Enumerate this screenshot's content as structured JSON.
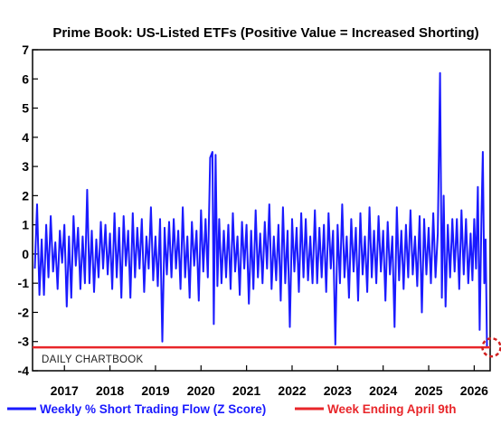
{
  "chart_data": {
    "type": "line",
    "title": "Prime Book: US-Listed ETFs (Positive Value = Increased Shorting)",
    "xlabel": "",
    "ylabel": "",
    "xlim": [
      2016.3,
      2026.35
    ],
    "ylim": [
      -4,
      7
    ],
    "y_ticks": [
      7,
      6,
      5,
      4,
      3,
      2,
      1,
      0,
      -1,
      -2,
      -3,
      -4
    ],
    "x_tick_labels": [
      "2017",
      "2018",
      "2019",
      "2020",
      "2021",
      "2022",
      "2023",
      "2024",
      "2025",
      "2026"
    ],
    "x_tick_values": [
      2017,
      2018,
      2019,
      2020,
      2021,
      2022,
      2023,
      2024,
      2025,
      2026
    ],
    "grid": false,
    "legend_position": "bottom",
    "series": [
      {
        "name": "Weekly % Short Trading Flow (Z Score)",
        "color": "#1a1aff",
        "kind": "line",
        "points": [
          [
            2016.35,
            -0.5
          ],
          [
            2016.4,
            1.7
          ],
          [
            2016.45,
            -1.4
          ],
          [
            2016.5,
            0.5
          ],
          [
            2016.55,
            -1.4
          ],
          [
            2016.6,
            1.0
          ],
          [
            2016.65,
            -0.8
          ],
          [
            2016.7,
            1.3
          ],
          [
            2016.75,
            -0.6
          ],
          [
            2016.8,
            0.4
          ],
          [
            2016.85,
            -1.2
          ],
          [
            2016.9,
            0.8
          ],
          [
            2016.95,
            -0.3
          ],
          [
            2017.0,
            1.0
          ],
          [
            2017.05,
            -1.8
          ],
          [
            2017.1,
            0.6
          ],
          [
            2017.15,
            -1.5
          ],
          [
            2017.2,
            1.3
          ],
          [
            2017.25,
            -0.4
          ],
          [
            2017.3,
            0.9
          ],
          [
            2017.35,
            -1.2
          ],
          [
            2017.4,
            0.6
          ],
          [
            2017.45,
            -1.0
          ],
          [
            2017.5,
            2.2
          ],
          [
            2017.55,
            -1.0
          ],
          [
            2017.6,
            0.8
          ],
          [
            2017.65,
            -1.3
          ],
          [
            2017.7,
            0.5
          ],
          [
            2017.75,
            -0.8
          ],
          [
            2017.8,
            1.1
          ],
          [
            2017.85,
            -0.5
          ],
          [
            2017.9,
            1.0
          ],
          [
            2017.95,
            -0.7
          ],
          [
            2018.0,
            0.7
          ],
          [
            2018.05,
            -1.2
          ],
          [
            2018.1,
            1.4
          ],
          [
            2018.15,
            -0.8
          ],
          [
            2018.2,
            0.9
          ],
          [
            2018.25,
            -1.5
          ],
          [
            2018.3,
            1.3
          ],
          [
            2018.35,
            -0.4
          ],
          [
            2018.4,
            0.8
          ],
          [
            2018.45,
            -1.5
          ],
          [
            2018.5,
            1.4
          ],
          [
            2018.55,
            -0.8
          ],
          [
            2018.6,
            0.9
          ],
          [
            2018.65,
            -0.5
          ],
          [
            2018.7,
            1.2
          ],
          [
            2018.75,
            -1.3
          ],
          [
            2018.8,
            0.6
          ],
          [
            2018.85,
            -0.5
          ],
          [
            2018.9,
            1.6
          ],
          [
            2018.95,
            -0.9
          ],
          [
            2019.0,
            0.6
          ],
          [
            2019.05,
            -1.1
          ],
          [
            2019.1,
            1.2
          ],
          [
            2019.15,
            -3.0
          ],
          [
            2019.2,
            0.9
          ],
          [
            2019.25,
            -0.7
          ],
          [
            2019.3,
            1.1
          ],
          [
            2019.35,
            -0.8
          ],
          [
            2019.4,
            1.2
          ],
          [
            2019.45,
            -0.5
          ],
          [
            2019.5,
            0.8
          ],
          [
            2019.55,
            -1.2
          ],
          [
            2019.6,
            1.6
          ],
          [
            2019.65,
            -0.8
          ],
          [
            2019.7,
            0.6
          ],
          [
            2019.75,
            -1.5
          ],
          [
            2019.8,
            1.1
          ],
          [
            2019.85,
            -0.4
          ],
          [
            2019.9,
            0.8
          ],
          [
            2019.95,
            -1.6
          ],
          [
            2020.0,
            1.5
          ],
          [
            2020.05,
            -0.6
          ],
          [
            2020.1,
            1.2
          ],
          [
            2020.15,
            -0.8
          ],
          [
            2020.2,
            3.3
          ],
          [
            2020.25,
            3.5
          ],
          [
            2020.28,
            -2.4
          ],
          [
            2020.32,
            3.4
          ],
          [
            2020.36,
            -1.1
          ],
          [
            2020.4,
            1.2
          ],
          [
            2020.45,
            -1.0
          ],
          [
            2020.5,
            0.8
          ],
          [
            2020.55,
            -0.8
          ],
          [
            2020.6,
            1.0
          ],
          [
            2020.65,
            -1.2
          ],
          [
            2020.7,
            1.4
          ],
          [
            2020.75,
            -0.6
          ],
          [
            2020.8,
            0.6
          ],
          [
            2020.85,
            -1.4
          ],
          [
            2020.9,
            1.1
          ],
          [
            2020.95,
            -0.5
          ],
          [
            2021.0,
            1.0
          ],
          [
            2021.05,
            -1.7
          ],
          [
            2021.1,
            0.8
          ],
          [
            2021.15,
            -1.2
          ],
          [
            2021.2,
            1.5
          ],
          [
            2021.25,
            -0.8
          ],
          [
            2021.3,
            0.7
          ],
          [
            2021.35,
            -1.0
          ],
          [
            2021.4,
            1.1
          ],
          [
            2021.45,
            -0.5
          ],
          [
            2021.5,
            1.7
          ],
          [
            2021.55,
            -1.2
          ],
          [
            2021.6,
            0.6
          ],
          [
            2021.65,
            -0.9
          ],
          [
            2021.7,
            1.0
          ],
          [
            2021.75,
            -1.6
          ],
          [
            2021.8,
            1.6
          ],
          [
            2021.85,
            -1.0
          ],
          [
            2021.9,
            0.8
          ],
          [
            2021.95,
            -2.5
          ],
          [
            2022.0,
            1.2
          ],
          [
            2022.05,
            -0.6
          ],
          [
            2022.1,
            0.9
          ],
          [
            2022.15,
            -1.3
          ],
          [
            2022.2,
            1.4
          ],
          [
            2022.25,
            -0.8
          ],
          [
            2022.3,
            1.2
          ],
          [
            2022.35,
            -0.9
          ],
          [
            2022.4,
            0.6
          ],
          [
            2022.45,
            -1.0
          ],
          [
            2022.5,
            1.5
          ],
          [
            2022.55,
            -1.0
          ],
          [
            2022.6,
            0.9
          ],
          [
            2022.65,
            -0.8
          ],
          [
            2022.7,
            1.0
          ],
          [
            2022.75,
            -1.3
          ],
          [
            2022.8,
            1.4
          ],
          [
            2022.85,
            -0.5
          ],
          [
            2022.9,
            0.8
          ],
          [
            2022.95,
            -3.1
          ],
          [
            2023.0,
            1.0
          ],
          [
            2023.05,
            -1.0
          ],
          [
            2023.1,
            1.7
          ],
          [
            2023.15,
            -0.8
          ],
          [
            2023.2,
            0.6
          ],
          [
            2023.25,
            -1.5
          ],
          [
            2023.3,
            1.2
          ],
          [
            2023.35,
            -0.6
          ],
          [
            2023.4,
            0.9
          ],
          [
            2023.45,
            -1.6
          ],
          [
            2023.5,
            1.4
          ],
          [
            2023.55,
            -0.7
          ],
          [
            2023.6,
            0.6
          ],
          [
            2023.65,
            -1.3
          ],
          [
            2023.7,
            1.6
          ],
          [
            2023.75,
            -0.8
          ],
          [
            2023.8,
            0.8
          ],
          [
            2023.85,
            -1.0
          ],
          [
            2023.9,
            1.3
          ],
          [
            2023.95,
            -0.6
          ],
          [
            2024.0,
            0.8
          ],
          [
            2024.05,
            -1.6
          ],
          [
            2024.1,
            1.1
          ],
          [
            2024.15,
            -0.7
          ],
          [
            2024.2,
            0.6
          ],
          [
            2024.25,
            -2.5
          ],
          [
            2024.3,
            1.6
          ],
          [
            2024.35,
            -0.9
          ],
          [
            2024.4,
            0.8
          ],
          [
            2024.45,
            -1.2
          ],
          [
            2024.5,
            1.0
          ],
          [
            2024.55,
            -0.8
          ],
          [
            2024.6,
            1.5
          ],
          [
            2024.65,
            -0.7
          ],
          [
            2024.7,
            0.6
          ],
          [
            2024.75,
            -1.1
          ],
          [
            2024.8,
            1.3
          ],
          [
            2024.85,
            -2.0
          ],
          [
            2024.9,
            1.2
          ],
          [
            2024.95,
            -0.7
          ],
          [
            2025.0,
            0.9
          ],
          [
            2025.05,
            -1.0
          ],
          [
            2025.1,
            1.4
          ],
          [
            2025.15,
            -0.8
          ],
          [
            2025.2,
            0.7
          ],
          [
            2025.25,
            6.2
          ],
          [
            2025.29,
            -1.5
          ],
          [
            2025.33,
            2.0
          ],
          [
            2025.37,
            -1.8
          ],
          [
            2025.42,
            1.0
          ],
          [
            2025.47,
            -0.8
          ],
          [
            2025.52,
            1.2
          ],
          [
            2025.57,
            -0.6
          ],
          [
            2025.62,
            1.2
          ],
          [
            2025.67,
            -1.2
          ],
          [
            2025.72,
            1.5
          ],
          [
            2025.77,
            -0.7
          ],
          [
            2025.82,
            1.2
          ],
          [
            2025.87,
            -1.0
          ],
          [
            2025.92,
            0.7
          ],
          [
            2025.96,
            -0.9
          ],
          [
            2026.0,
            1.2
          ],
          [
            2026.04,
            -0.5
          ],
          [
            2026.08,
            2.3
          ],
          [
            2026.12,
            -2.6
          ],
          [
            2026.16,
            1.3
          ],
          [
            2026.19,
            3.5
          ],
          [
            2026.22,
            -1.0
          ],
          [
            2026.25,
            0.5
          ],
          [
            2026.28,
            -3.2
          ]
        ]
      },
      {
        "name": "Week Ending April 9th",
        "color": "#e8262a",
        "kind": "hline",
        "y": -3.2
      }
    ],
    "annotations": [
      {
        "kind": "dashed-circle",
        "x": 2026.28,
        "y": -3.2,
        "color": "#d11f1f"
      }
    ],
    "watermark": "DAILY CHARTBOOK"
  }
}
